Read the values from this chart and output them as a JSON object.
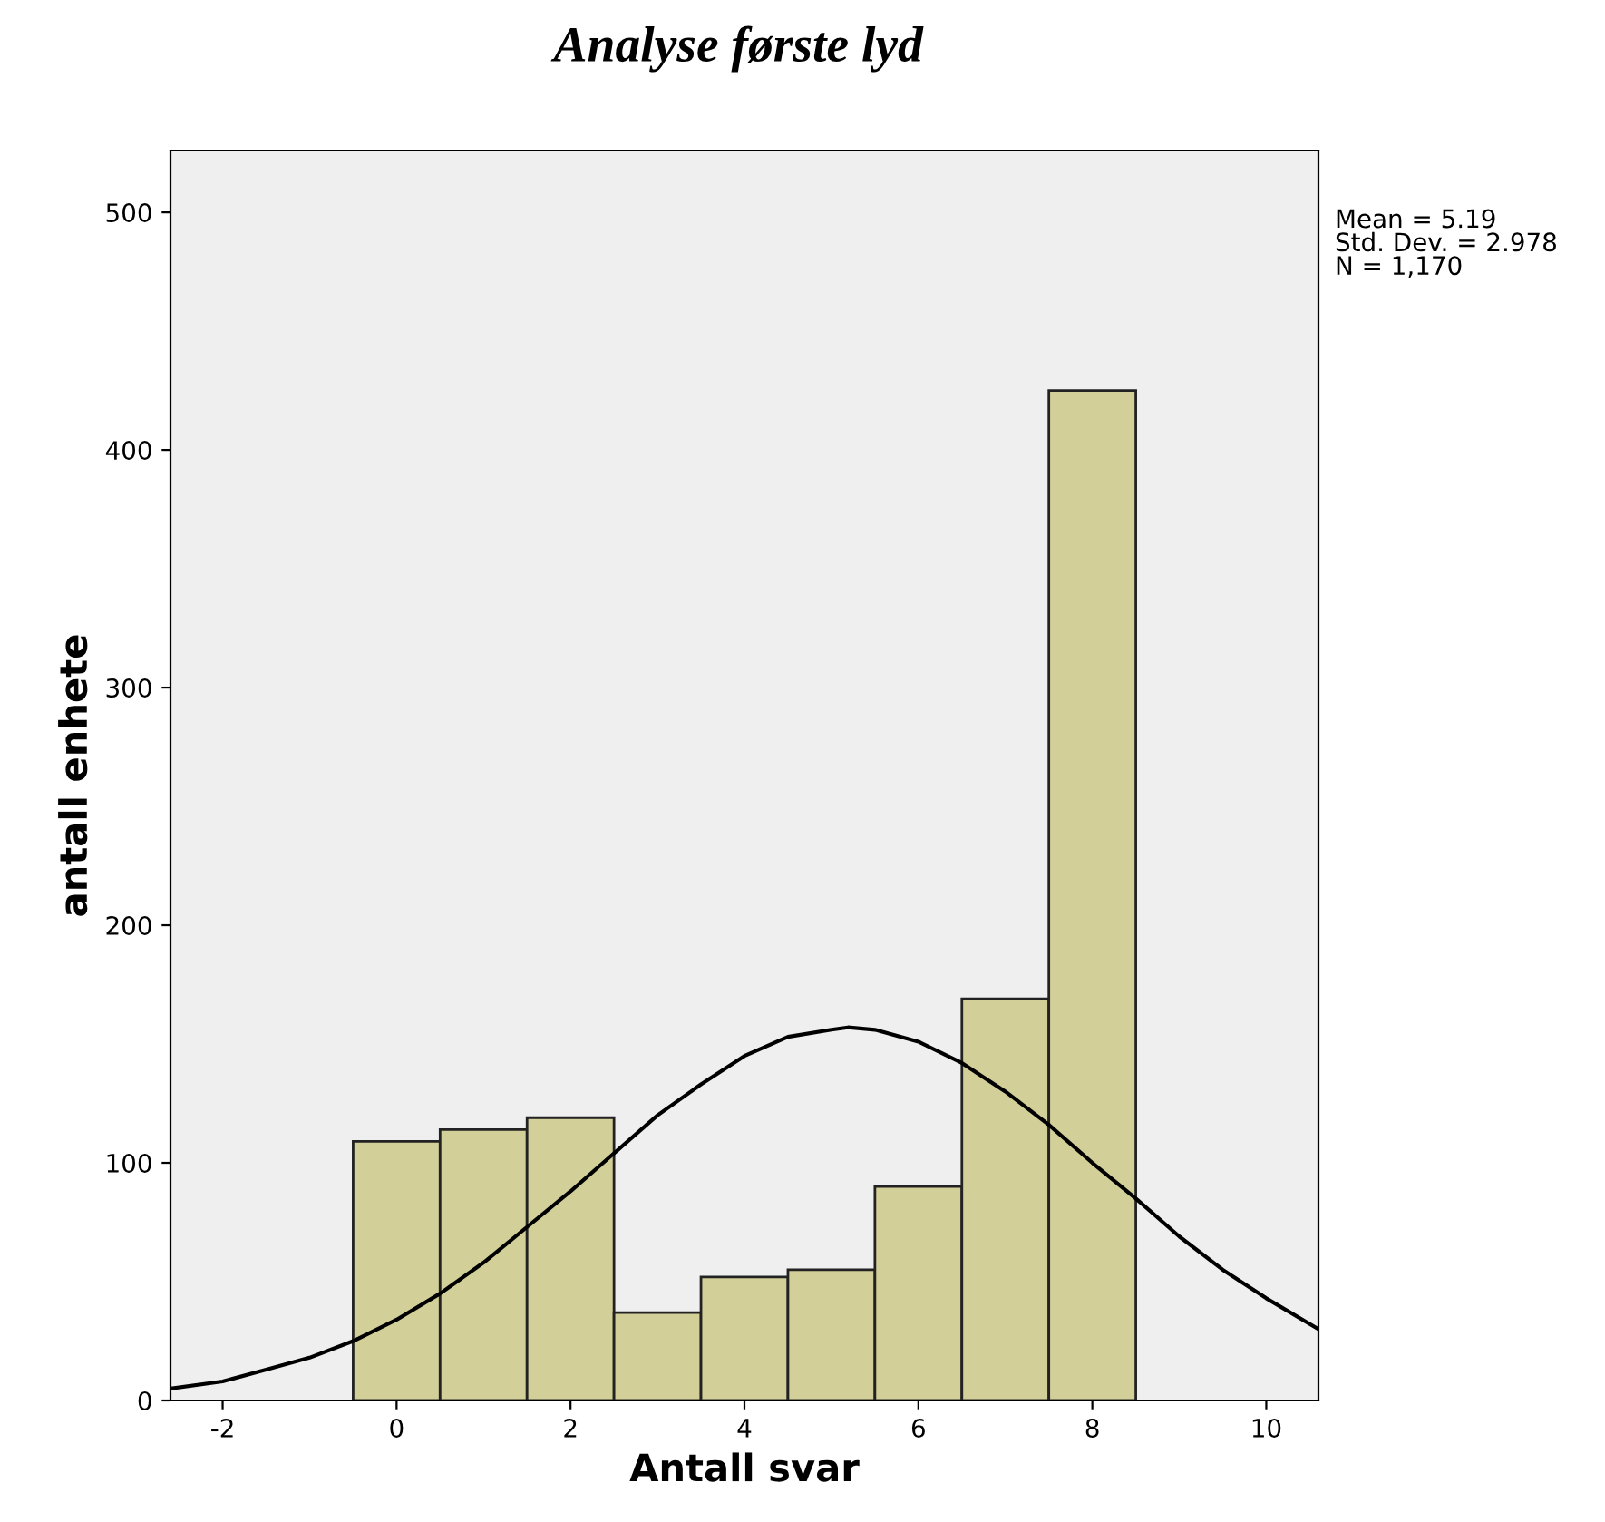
{
  "chart_data": {
    "type": "histogram",
    "title": "Analyse første lyd",
    "xlabel": "Antall svar",
    "ylabel": "antall enhete",
    "series": [
      {
        "color": "#d3cf98",
        "bins": [
          -0.5,
          0.5,
          1.5,
          2.5,
          3.5,
          4.5,
          5.5,
          6.5,
          7.5,
          8.5
        ],
        "values": [
          109,
          114,
          119,
          37,
          52,
          55,
          90,
          169,
          425
        ]
      },
      {
        "type": "line",
        "color": "#000000",
        "x": [
          -2.6,
          -2,
          -1.5,
          -1,
          -0.5,
          0,
          0.5,
          1,
          1.5,
          2,
          2.5,
          3,
          3.5,
          4,
          4.5,
          5,
          5.19,
          5.5,
          6,
          6.5,
          7,
          7.5,
          8,
          8.5,
          9,
          9.5,
          10,
          10.6
        ],
        "values": [
          5,
          8,
          13,
          18,
          25,
          34,
          45,
          58,
          73,
          88,
          104,
          120,
          133,
          145,
          153,
          156,
          157,
          156,
          151,
          142,
          130,
          116,
          100,
          85,
          69,
          55,
          43,
          30
        ]
      }
    ],
    "xlim": [
      -2.6,
      10.6
    ],
    "xticks": [
      -2,
      0,
      2,
      4,
      6,
      8,
      10
    ],
    "ylim": [
      0,
      526
    ],
    "yticks": [
      0,
      100,
      200,
      300,
      400,
      500
    ],
    "grid": false,
    "annotations": [
      "Mean = 5.19\nStd. Dev. = 2.978\nN = 1,170"
    ]
  }
}
